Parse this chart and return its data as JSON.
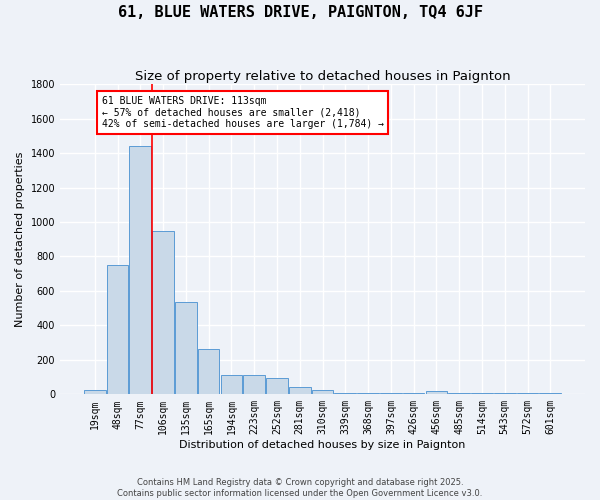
{
  "title": "61, BLUE WATERS DRIVE, PAIGNTON, TQ4 6JF",
  "subtitle": "Size of property relative to detached houses in Paignton",
  "xlabel": "Distribution of detached houses by size in Paignton",
  "ylabel": "Number of detached properties",
  "bins": [
    "19sqm",
    "48sqm",
    "77sqm",
    "106sqm",
    "135sqm",
    "165sqm",
    "194sqm",
    "223sqm",
    "252sqm",
    "281sqm",
    "310sqm",
    "339sqm",
    "368sqm",
    "397sqm",
    "426sqm",
    "456sqm",
    "485sqm",
    "514sqm",
    "543sqm",
    "572sqm",
    "601sqm"
  ],
  "bar_values": [
    25,
    750,
    1440,
    950,
    535,
    265,
    115,
    115,
    95,
    43,
    25,
    10,
    10,
    5,
    5,
    18,
    5,
    5,
    5,
    5,
    10
  ],
  "bar_color": "#c9d9e8",
  "bar_edgecolor": "#5b9bd5",
  "red_line_bin_index": 3,
  "annotation_text": "61 BLUE WATERS DRIVE: 113sqm\n← 57% of detached houses are smaller (2,418)\n42% of semi-detached houses are larger (1,784) →",
  "annotation_box_color": "white",
  "annotation_box_edgecolor": "red",
  "ylim": [
    0,
    1800
  ],
  "yticks": [
    0,
    200,
    400,
    600,
    800,
    1000,
    1200,
    1400,
    1600,
    1800
  ],
  "footnote1": "Contains HM Land Registry data © Crown copyright and database right 2025.",
  "footnote2": "Contains public sector information licensed under the Open Government Licence v3.0.",
  "background_color": "#eef2f8",
  "grid_color": "white",
  "title_fontsize": 11,
  "subtitle_fontsize": 9.5,
  "axis_label_fontsize": 8,
  "tick_fontsize": 7,
  "footnote_fontsize": 6,
  "bar_width": 0.95
}
